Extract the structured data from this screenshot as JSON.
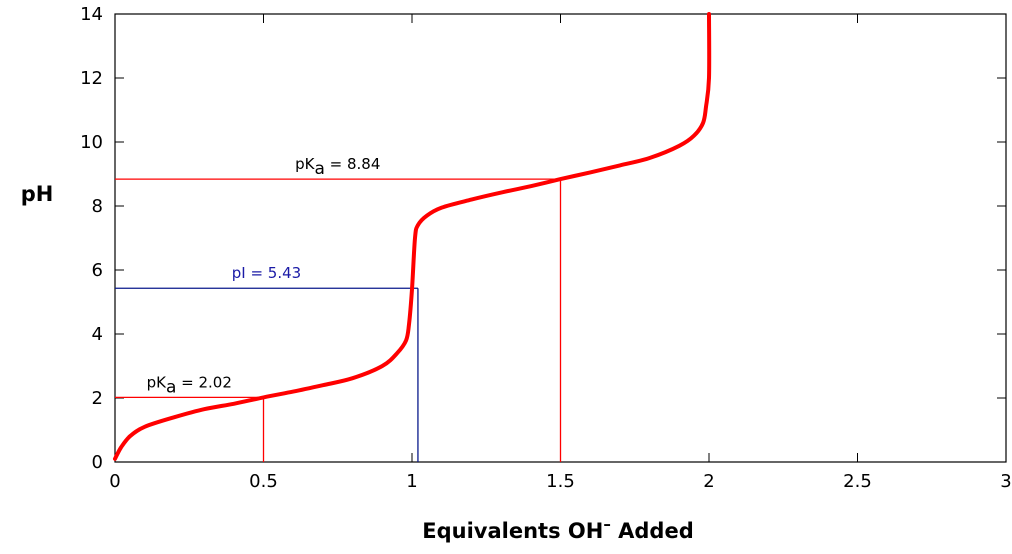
{
  "chart_data": {
    "type": "line",
    "title": "",
    "xlabel": {
      "prefix": "Equivalents OH",
      "superscript": "–",
      "suffix": " Added"
    },
    "ylabel": "pH",
    "xlim": [
      0,
      3
    ],
    "ylim": [
      0,
      14
    ],
    "xticks": [
      0,
      0.5,
      1,
      1.5,
      2,
      2.5,
      3
    ],
    "xtick_labels": [
      "0",
      "0.5",
      "1",
      "1.5",
      "2",
      "2.5",
      "3"
    ],
    "yticks": [
      0,
      2,
      4,
      6,
      8,
      10,
      12,
      14
    ],
    "ytick_labels": [
      "0",
      "2",
      "4",
      "6",
      "8",
      "10",
      "12",
      "14"
    ],
    "grid": false,
    "series": [
      {
        "color": "#ff0000",
        "x": [
          0.0,
          0.02,
          0.05,
          0.1,
          0.2,
          0.3,
          0.4,
          0.5,
          0.6,
          0.7,
          0.8,
          0.9,
          0.95,
          0.98,
          0.99,
          1.0,
          1.01,
          1.02,
          1.05,
          1.1,
          1.2,
          1.3,
          1.4,
          1.5,
          1.6,
          1.7,
          1.8,
          1.9,
          1.95,
          1.98,
          1.99,
          2.0,
          2.0
        ],
        "y": [
          0.1,
          0.45,
          0.8,
          1.1,
          1.4,
          1.65,
          1.82,
          2.02,
          2.2,
          2.4,
          2.62,
          3.0,
          3.4,
          3.8,
          4.3,
          5.4,
          7.0,
          7.4,
          7.7,
          7.95,
          8.2,
          8.42,
          8.62,
          8.84,
          9.05,
          9.27,
          9.5,
          9.88,
          10.2,
          10.6,
          11.1,
          12.0,
          14.0
        ]
      }
    ],
    "annotations": [
      {
        "kind": "pKa",
        "label": "pK",
        "sub": "a",
        "value_text": " = 2.02",
        "x": 0.5,
        "y": 2.02,
        "color": "#ff0000",
        "text_color": "#000000"
      },
      {
        "kind": "pI",
        "label": "pI = 5.43",
        "x": 1.02,
        "y": 5.43,
        "color": "#0a1a8c",
        "text_color": "#1a1aa6"
      },
      {
        "kind": "pKa",
        "label": "pK",
        "sub": "a",
        "value_text": " = 8.84",
        "x": 1.5,
        "y": 8.84,
        "color": "#ff0000",
        "text_color": "#000000"
      }
    ]
  }
}
